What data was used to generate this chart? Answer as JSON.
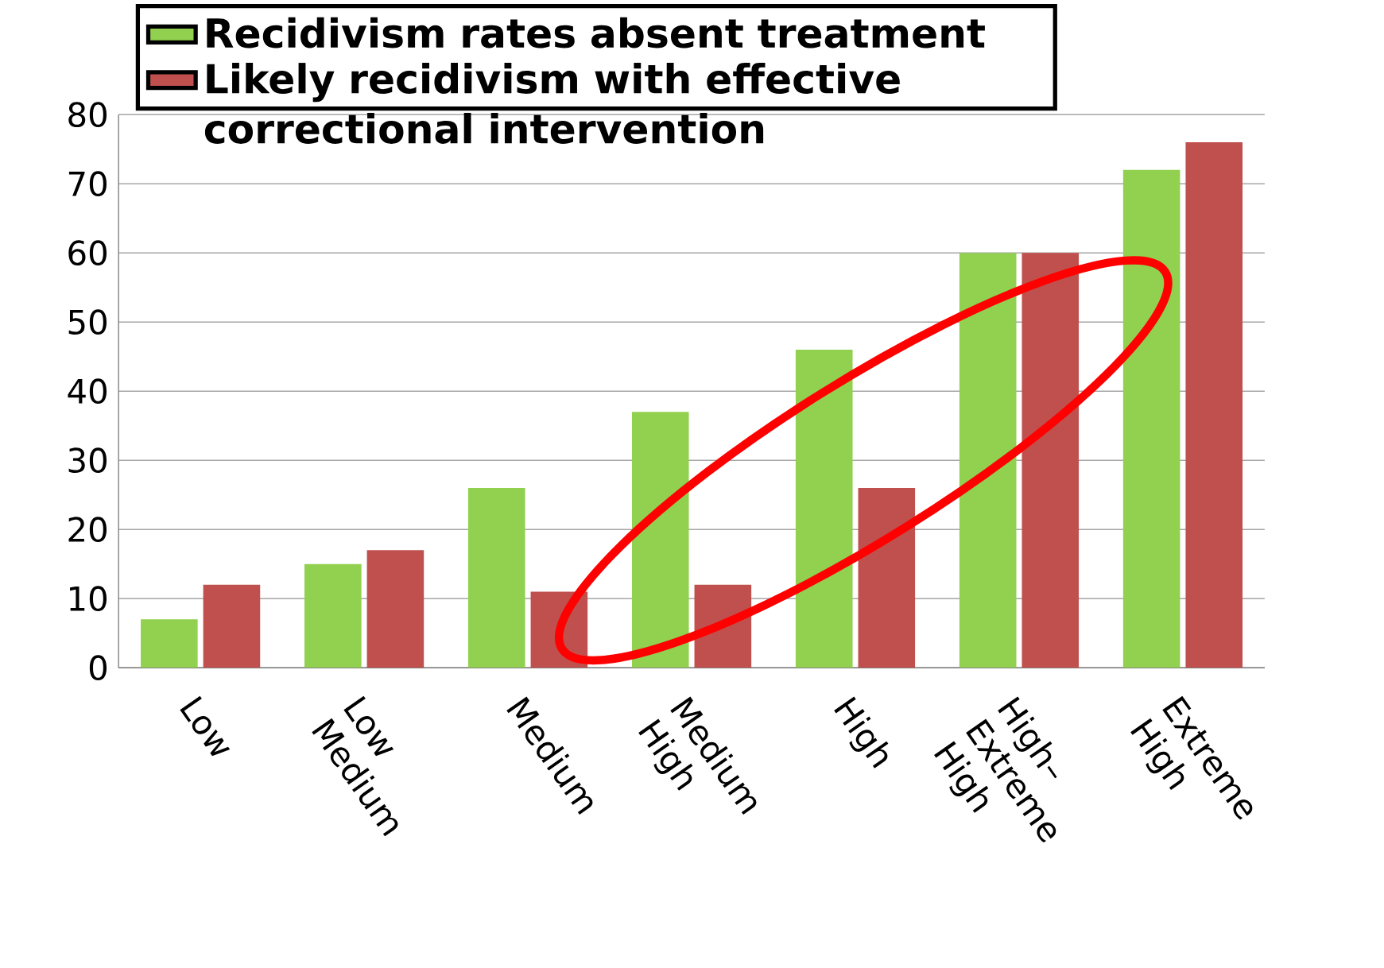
{
  "chart_data": {
    "type": "bar",
    "categories": [
      "Low",
      "Low Medium",
      "Medium",
      "Medium High",
      "High",
      "High–Extreme High",
      "Extreme High"
    ],
    "series": [
      {
        "name": "Recidivism rates absent treatment",
        "color": "#92d050",
        "values": [
          7,
          15,
          26,
          37,
          46,
          60,
          72
        ]
      },
      {
        "name": "Likely recidivism with effective correctional intervention",
        "color": "#c0504d",
        "values": [
          12,
          17,
          11,
          12,
          26,
          60,
          76
        ]
      }
    ],
    "ylim": [
      0,
      80
    ],
    "yticks": [
      0,
      10,
      20,
      30,
      40,
      50,
      60,
      70,
      80
    ],
    "grid": "y",
    "legend": "top"
  }
}
